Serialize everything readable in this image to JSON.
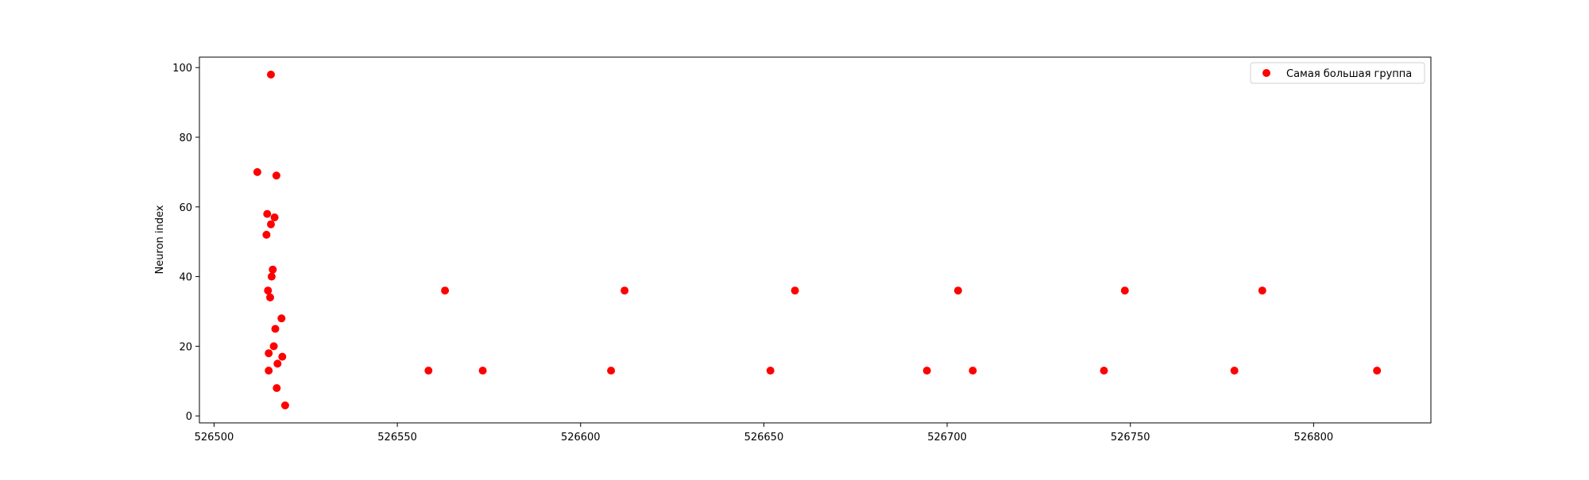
{
  "chart_data": {
    "type": "scatter",
    "title": "",
    "xlabel": "",
    "ylabel": "Neuron index",
    "xlim": [
      526496,
      526832
    ],
    "ylim": [
      -2,
      103
    ],
    "grid": false,
    "legend_position": "top-right",
    "x_ticks": [
      526500,
      526550,
      526600,
      526650,
      526700,
      526750,
      526800
    ],
    "y_ticks": [
      0,
      20,
      40,
      60,
      80,
      100
    ],
    "series": [
      {
        "name": "Самая большая группа",
        "color": "#ff0000",
        "points": [
          [
            526515.5,
            98
          ],
          [
            526511.8,
            70
          ],
          [
            526517,
            69
          ],
          [
            526514.5,
            58
          ],
          [
            526516.5,
            57
          ],
          [
            526515.5,
            55
          ],
          [
            526514.3,
            52
          ],
          [
            526516,
            42
          ],
          [
            526515.7,
            40
          ],
          [
            526514.7,
            36
          ],
          [
            526515.3,
            34
          ],
          [
            526518.4,
            28
          ],
          [
            526516.7,
            25
          ],
          [
            526516.3,
            20
          ],
          [
            526514.9,
            18
          ],
          [
            526518.6,
            17
          ],
          [
            526517.3,
            15
          ],
          [
            526514.9,
            13
          ],
          [
            526517.1,
            8
          ],
          [
            526519.4,
            3
          ],
          [
            526563,
            36
          ],
          [
            526612,
            36
          ],
          [
            526658.5,
            36
          ],
          [
            526703,
            36
          ],
          [
            526748.5,
            36
          ],
          [
            526786,
            36
          ],
          [
            526558.5,
            13
          ],
          [
            526573.3,
            13
          ],
          [
            526608.3,
            13
          ],
          [
            526651.8,
            13
          ],
          [
            526694.5,
            13
          ],
          [
            526707,
            13
          ],
          [
            526742.8,
            13
          ],
          [
            526778.4,
            13
          ],
          [
            526817.3,
            13
          ]
        ]
      }
    ]
  }
}
